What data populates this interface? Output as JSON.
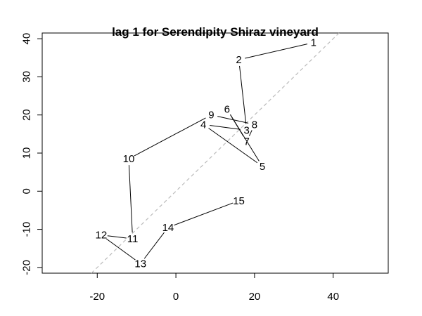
{
  "chart_data": {
    "type": "line",
    "title": "lag 1 for Serendipity Shiraz vineyard",
    "xlabel": "",
    "ylabel": "",
    "xlim": [
      -34,
      54
    ],
    "ylim": [
      -21.5,
      41.5
    ],
    "x_ticks": [
      -20,
      0,
      20,
      40
    ],
    "y_ticks": [
      -20,
      -10,
      0,
      10,
      20,
      30,
      40
    ],
    "grid": false,
    "reference_line": {
      "slope": 1,
      "intercept": 0,
      "style": "dashed",
      "color": "#bbbbbb"
    },
    "points": [
      {
        "label": "1",
        "x": 35,
        "y": 39
      },
      {
        "label": "2",
        "x": 16,
        "y": 34.5
      },
      {
        "label": "3",
        "x": 18,
        "y": 16
      },
      {
        "label": "4",
        "x": 7,
        "y": 17.5
      },
      {
        "label": "5",
        "x": 22,
        "y": 6.5
      },
      {
        "label": "6",
        "x": 13,
        "y": 21.5
      },
      {
        "label": "7",
        "x": 18,
        "y": 13
      },
      {
        "label": "8",
        "x": 20,
        "y": 17.5
      },
      {
        "label": "9",
        "x": 9,
        "y": 20
      },
      {
        "label": "10",
        "x": -12,
        "y": 8.5
      },
      {
        "label": "11",
        "x": -11,
        "y": -12.5
      },
      {
        "label": "12",
        "x": -19,
        "y": -11.5
      },
      {
        "label": "13",
        "x": -9,
        "y": -19
      },
      {
        "label": "14",
        "x": -2,
        "y": -9.5
      },
      {
        "label": "15",
        "x": 16,
        "y": -2.5
      }
    ]
  },
  "colors": {
    "line": "#000000",
    "reference": "#bbbbbb",
    "axis": "#000000"
  }
}
